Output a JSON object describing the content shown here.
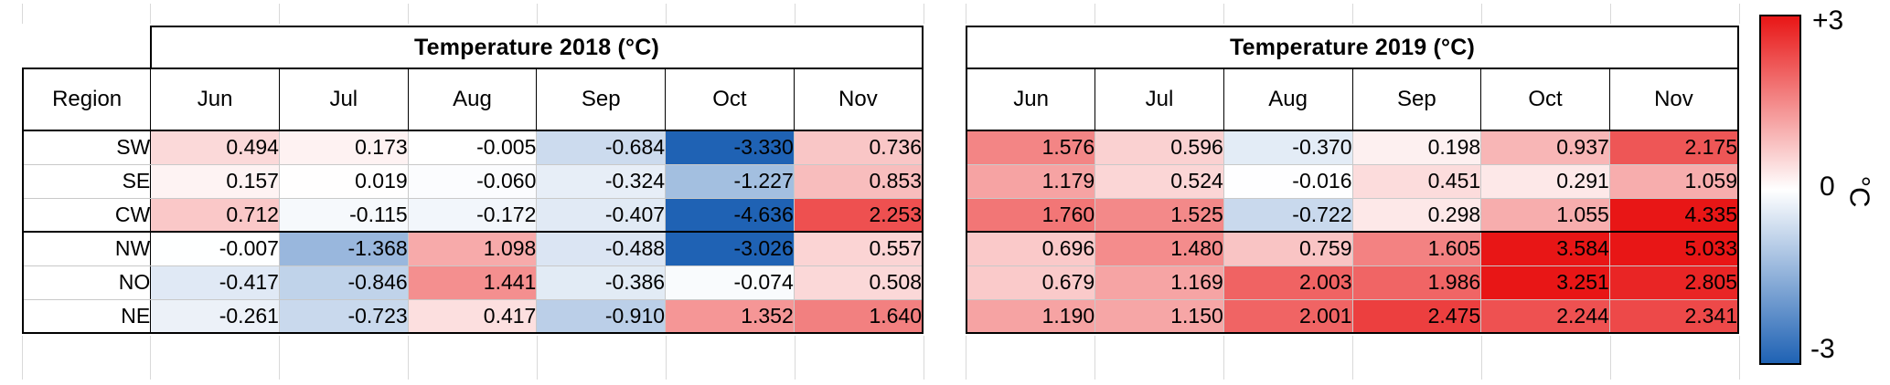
{
  "chart_data": {
    "type": "heatmap",
    "tables": [
      {
        "title": "Temperature 2018 (°C)",
        "row_header_label": "Region",
        "columns": [
          "Jun",
          "Jul",
          "Aug",
          "Sep",
          "Oct",
          "Nov"
        ],
        "rows": [
          "SW",
          "SE",
          "CW",
          "NW",
          "NO",
          "NE"
        ],
        "show_row_labels": true,
        "values": [
          [
            0.494,
            0.173,
            -0.005,
            -0.684,
            -3.33,
            0.736
          ],
          [
            0.157,
            0.019,
            -0.06,
            -0.324,
            -1.227,
            0.853
          ],
          [
            0.712,
            -0.115,
            -0.172,
            -0.407,
            -4.636,
            2.253
          ],
          [
            -0.007,
            -1.368,
            1.098,
            -0.488,
            -3.026,
            0.557
          ],
          [
            -0.417,
            -0.846,
            1.441,
            -0.386,
            -0.074,
            0.508
          ],
          [
            -0.261,
            -0.723,
            0.417,
            -0.91,
            1.352,
            1.64
          ]
        ]
      },
      {
        "title": "Temperature 2019 (°C)",
        "row_header_label": "",
        "columns": [
          "Jun",
          "Jul",
          "Aug",
          "Sep",
          "Oct",
          "Nov"
        ],
        "rows": [
          "SW",
          "SE",
          "CW",
          "NW",
          "NO",
          "NE"
        ],
        "show_row_labels": false,
        "values": [
          [
            1.576,
            0.596,
            -0.37,
            0.198,
            0.937,
            2.175
          ],
          [
            1.179,
            0.524,
            -0.016,
            0.451,
            0.291,
            1.059
          ],
          [
            1.76,
            1.525,
            -0.722,
            0.298,
            1.055,
            4.335
          ],
          [
            0.696,
            1.48,
            0.759,
            1.605,
            3.584,
            5.033
          ],
          [
            0.679,
            1.169,
            2.003,
            1.986,
            3.251,
            2.805
          ],
          [
            1.19,
            1.15,
            2.001,
            2.475,
            2.244,
            2.341
          ]
        ]
      }
    ],
    "row_group_separator_after": "CW",
    "colorbar": {
      "vmin": -3,
      "vmax": 3,
      "tick_labels": [
        "+3",
        "0",
        "-3"
      ],
      "unit": "°C",
      "color_max": "#e81616",
      "color_mid": "#ffffff",
      "color_min": "#1f62b4"
    }
  }
}
